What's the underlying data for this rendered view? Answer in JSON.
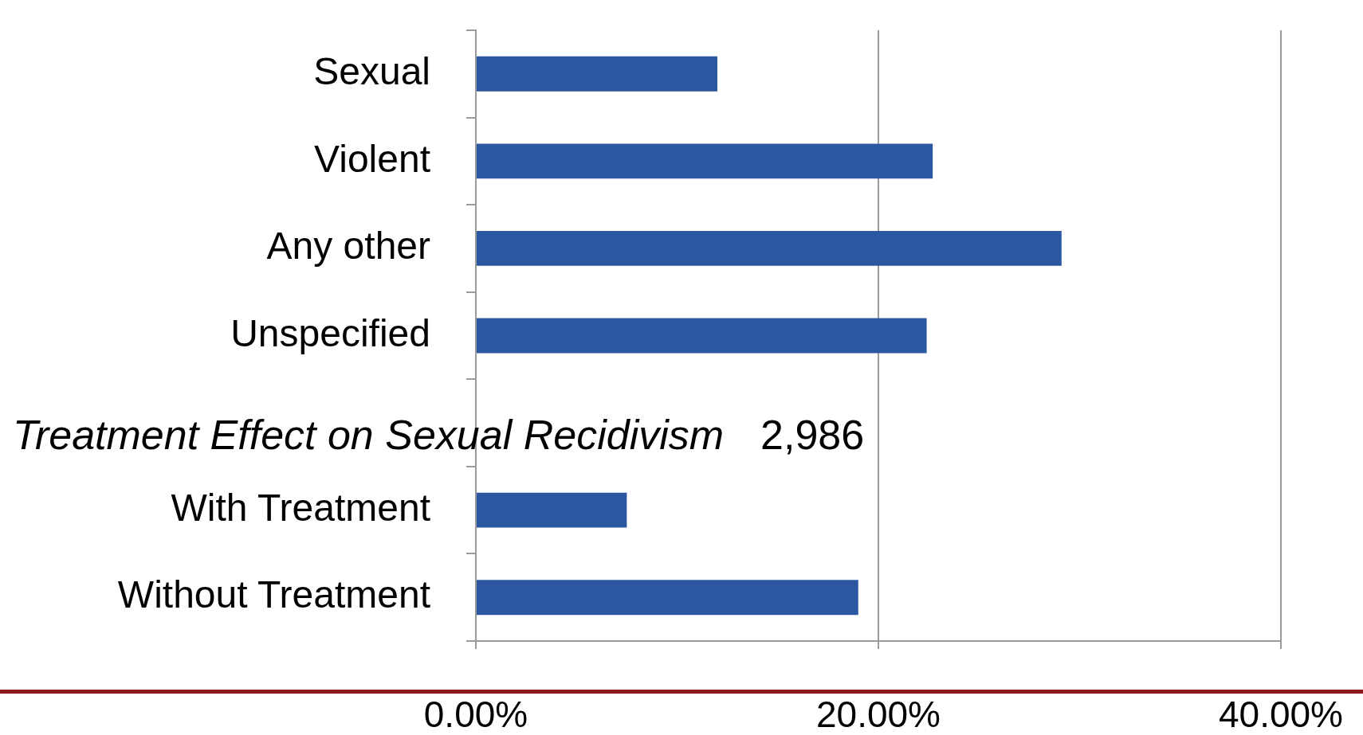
{
  "chart_data": {
    "type": "bar",
    "orientation": "horizontal",
    "categories": [
      "Sexual",
      "Violent",
      "Any other",
      "Unspecified",
      null,
      "With Treatment",
      "Without Treatment"
    ],
    "values": [
      12,
      22.7,
      29.1,
      22.4,
      null,
      7.5,
      19
    ],
    "color": "#2b56a0",
    "xlim": [
      0,
      40
    ],
    "xticks": [
      {
        "value": 0,
        "label": "0.00%"
      },
      {
        "value": 20,
        "label": "20.00%"
      },
      {
        "value": 40,
        "label": "40.00%"
      }
    ],
    "grid": "x",
    "annotations": [
      "Treatment Effect on Sexual Recidivism",
      "2,986"
    ]
  }
}
